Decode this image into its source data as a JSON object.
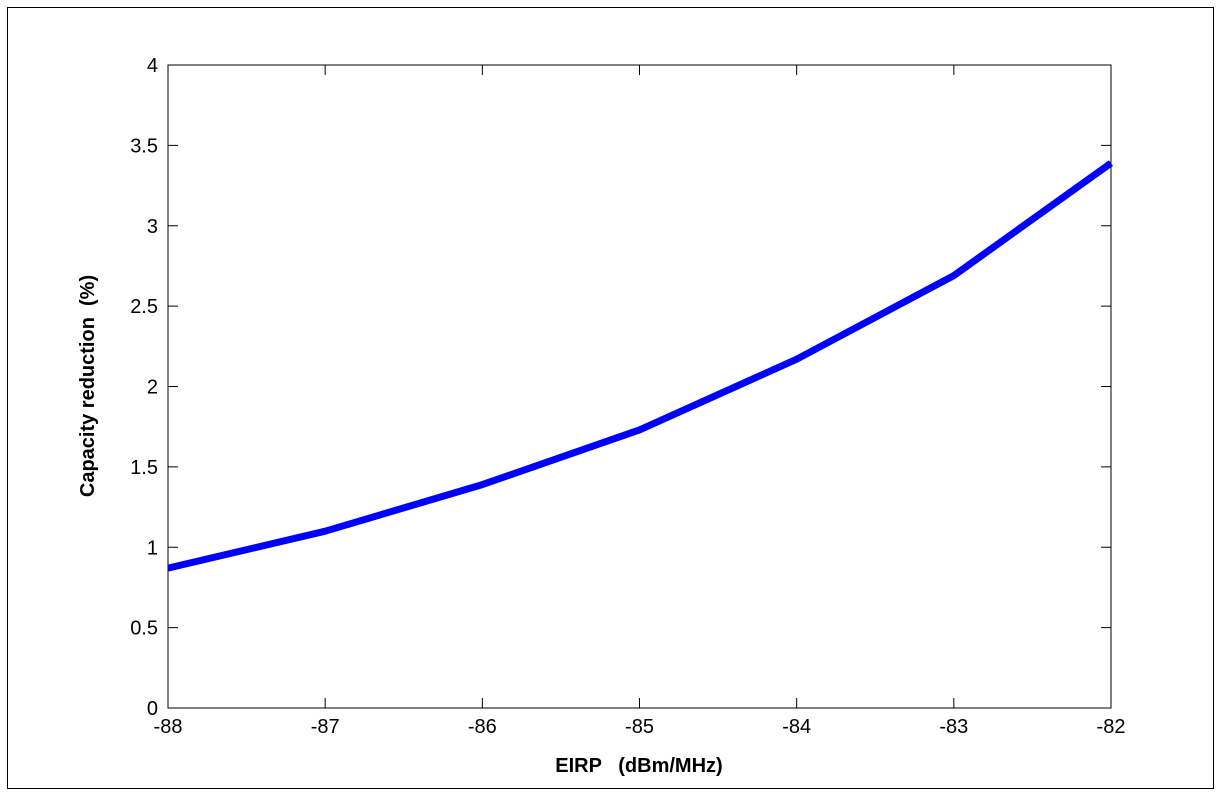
{
  "chart_data": {
    "type": "line",
    "title": "",
    "xlabel": "EIRP   (dBm/MHz)",
    "ylabel": "Capacity reduction  (%)",
    "xlim": [
      -88,
      -82
    ],
    "ylim": [
      0,
      4
    ],
    "xticks": [
      -88,
      -87,
      -86,
      -85,
      -84,
      -83,
      -82
    ],
    "yticks": [
      0,
      0.5,
      1,
      1.5,
      2,
      2.5,
      3,
      3.5,
      4
    ],
    "x_tick_labels": [
      "-88",
      "-87",
      "-86",
      "-85",
      "-84",
      "-83",
      "-82"
    ],
    "y_tick_labels": [
      "0",
      "0.5",
      "1",
      "1.5",
      "2",
      "2.5",
      "3",
      "3.5",
      "4"
    ],
    "grid": false,
    "legend": "none",
    "series": [
      {
        "x": [
          -88,
          -87,
          -86,
          -85,
          -84,
          -83,
          -82
        ],
        "y": [
          0.87,
          1.1,
          1.39,
          1.73,
          2.17,
          2.69,
          3.39
        ],
        "color": "#0000ff"
      }
    ]
  }
}
